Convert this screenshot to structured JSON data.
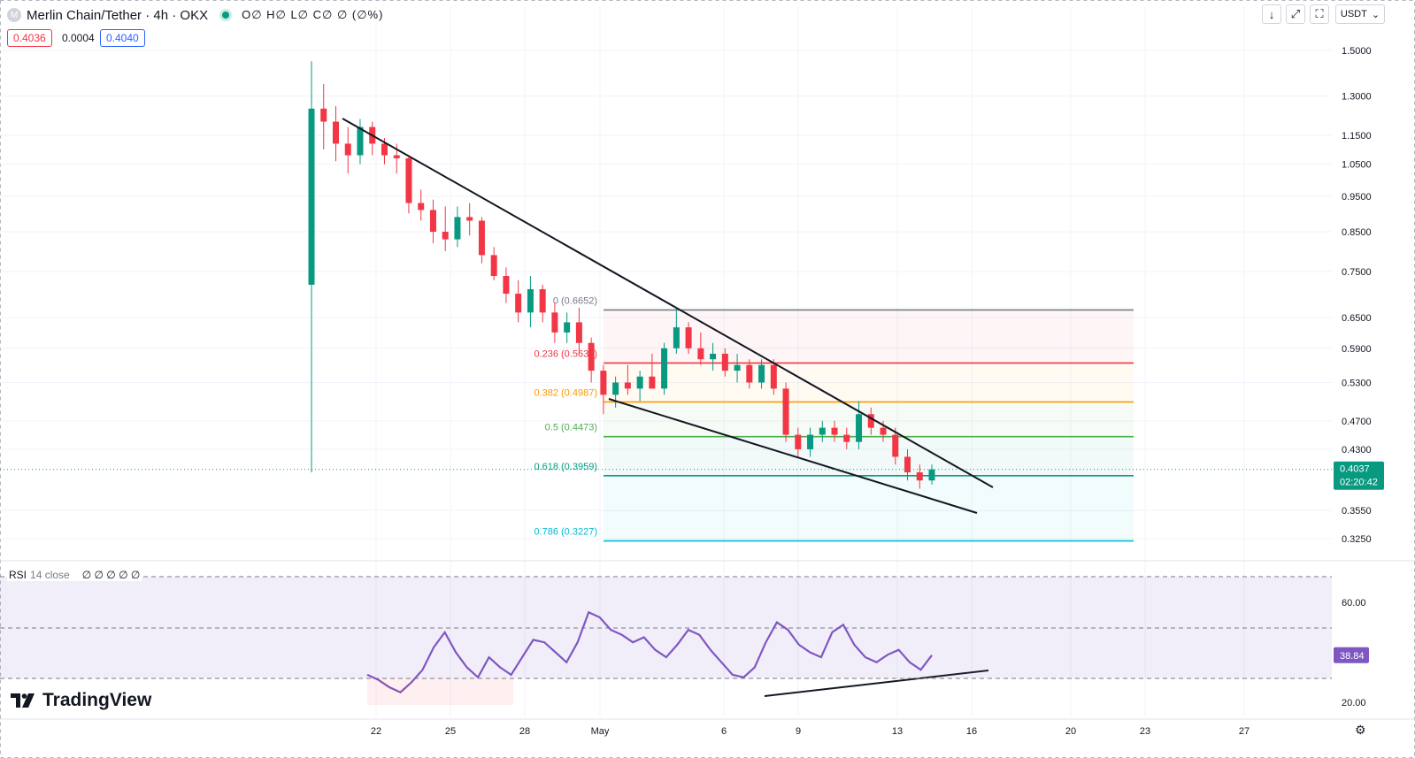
{
  "header": {
    "symbol_icon": "M",
    "title": "Merlin Chain/Tether · 4h · OKX",
    "ohlc": "O∅ H∅ L∅ C∅ ∅ (∅%)",
    "sell_price": "0.4036",
    "spread": "0.0004",
    "buy_price": "0.4040"
  },
  "toolbar": {
    "down_icon": "↓",
    "fullscreen_icon": "⤢",
    "screenshot_icon": "⛶",
    "currency": "USDT",
    "currency_caret": "⌄"
  },
  "colors": {
    "up": "#089981",
    "down": "#f23645",
    "rsi": "#7e57c2",
    "fib0": "#787b86",
    "fib236": "#f23645",
    "fib382": "#ff9800",
    "fib5": "#4caf50",
    "fib618": "#089981",
    "fib786": "#00bcd4"
  },
  "rsi_legend": {
    "label": "RSI",
    "params": "14 close",
    "values": "∅ ∅ ∅ ∅ ∅"
  },
  "fib_levels": [
    {
      "label": "0 (0.6652)",
      "price": 0.6652,
      "color": "#787b86"
    },
    {
      "label": "0.236 (0.5634)",
      "price": 0.5634,
      "color": "#f23645"
    },
    {
      "label": "0.382 (0.4987)",
      "price": 0.4987,
      "color": "#ff9800"
    },
    {
      "label": "0.5 (0.4473)",
      "price": 0.4473,
      "color": "#4caf50"
    },
    {
      "label": "0.618 (0.3959)",
      "price": 0.3959,
      "color": "#089981"
    },
    {
      "label": "0.786 (0.3227)",
      "price": 0.3227,
      "color": "#00bcd4"
    }
  ],
  "price_axis": [
    "1.5000",
    "1.3000",
    "1.1500",
    "1.0500",
    "0.9500",
    "0.8500",
    "0.7500",
    "0.6500",
    "0.5900",
    "0.5300",
    "0.4700",
    "0.4300",
    "0.3550",
    "0.3250"
  ],
  "last_price": {
    "value": "0.4037",
    "countdown": "02:20:42"
  },
  "rsi_axis": [
    "60.00",
    "20.00"
  ],
  "rsi_last": "38.84",
  "time_axis": [
    "22",
    "25",
    "28",
    "May",
    "6",
    "9",
    "13",
    "16",
    "20",
    "23",
    "27"
  ],
  "brand": "TradingView",
  "chart_data": {
    "type": "candlestick",
    "timeframe": "4h",
    "y_scale": "log",
    "candles": [
      {
        "t": "Apr 19",
        "o": 0.72,
        "h": 1.45,
        "l": 0.4,
        "c": 1.25
      },
      {
        "t": "Apr 19",
        "o": 1.25,
        "h": 1.35,
        "l": 1.1,
        "c": 1.2
      },
      {
        "t": "Apr 20",
        "o": 1.2,
        "h": 1.26,
        "l": 1.06,
        "c": 1.12
      },
      {
        "t": "Apr 20",
        "o": 1.12,
        "h": 1.18,
        "l": 1.02,
        "c": 1.08
      },
      {
        "t": "Apr 21",
        "o": 1.08,
        "h": 1.21,
        "l": 1.05,
        "c": 1.18
      },
      {
        "t": "Apr 21",
        "o": 1.18,
        "h": 1.2,
        "l": 1.08,
        "c": 1.12
      },
      {
        "t": "Apr 22",
        "o": 1.12,
        "h": 1.14,
        "l": 1.05,
        "c": 1.08
      },
      {
        "t": "Apr 22",
        "o": 1.08,
        "h": 1.12,
        "l": 1.02,
        "c": 1.07
      },
      {
        "t": "Apr 23",
        "o": 1.07,
        "h": 1.08,
        "l": 0.9,
        "c": 0.93
      },
      {
        "t": "Apr 23",
        "o": 0.93,
        "h": 0.97,
        "l": 0.88,
        "c": 0.91
      },
      {
        "t": "Apr 24",
        "o": 0.91,
        "h": 0.94,
        "l": 0.82,
        "c": 0.85
      },
      {
        "t": "Apr 24",
        "o": 0.85,
        "h": 0.92,
        "l": 0.8,
        "c": 0.83
      },
      {
        "t": "Apr 25",
        "o": 0.83,
        "h": 0.92,
        "l": 0.81,
        "c": 0.89
      },
      {
        "t": "Apr 25",
        "o": 0.89,
        "h": 0.93,
        "l": 0.84,
        "c": 0.88
      },
      {
        "t": "Apr 26",
        "o": 0.88,
        "h": 0.89,
        "l": 0.77,
        "c": 0.79
      },
      {
        "t": "Apr 26",
        "o": 0.79,
        "h": 0.81,
        "l": 0.73,
        "c": 0.74
      },
      {
        "t": "Apr 27",
        "o": 0.74,
        "h": 0.76,
        "l": 0.68,
        "c": 0.7
      },
      {
        "t": "Apr 27",
        "o": 0.7,
        "h": 0.73,
        "l": 0.64,
        "c": 0.66
      },
      {
        "t": "Apr 28",
        "o": 0.66,
        "h": 0.74,
        "l": 0.63,
        "c": 0.71
      },
      {
        "t": "Apr 28",
        "o": 0.71,
        "h": 0.72,
        "l": 0.64,
        "c": 0.66
      },
      {
        "t": "Apr 29",
        "o": 0.66,
        "h": 0.68,
        "l": 0.6,
        "c": 0.62
      },
      {
        "t": "Apr 29",
        "o": 0.62,
        "h": 0.66,
        "l": 0.6,
        "c": 0.64
      },
      {
        "t": "Apr 30",
        "o": 0.64,
        "h": 0.67,
        "l": 0.58,
        "c": 0.6
      },
      {
        "t": "Apr 30",
        "o": 0.6,
        "h": 0.61,
        "l": 0.53,
        "c": 0.55
      },
      {
        "t": "May 1",
        "o": 0.55,
        "h": 0.56,
        "l": 0.48,
        "c": 0.51
      },
      {
        "t": "May 1",
        "o": 0.51,
        "h": 0.54,
        "l": 0.49,
        "c": 0.53
      },
      {
        "t": "May 2",
        "o": 0.53,
        "h": 0.56,
        "l": 0.51,
        "c": 0.52
      },
      {
        "t": "May 2",
        "o": 0.52,
        "h": 0.55,
        "l": 0.5,
        "c": 0.54
      },
      {
        "t": "May 3",
        "o": 0.54,
        "h": 0.58,
        "l": 0.52,
        "c": 0.52
      },
      {
        "t": "May 3",
        "o": 0.52,
        "h": 0.6,
        "l": 0.51,
        "c": 0.59
      },
      {
        "t": "May 4",
        "o": 0.59,
        "h": 0.67,
        "l": 0.58,
        "c": 0.63
      },
      {
        "t": "May 4",
        "o": 0.63,
        "h": 0.64,
        "l": 0.58,
        "c": 0.59
      },
      {
        "t": "May 5",
        "o": 0.59,
        "h": 0.62,
        "l": 0.56,
        "c": 0.57
      },
      {
        "t": "May 5",
        "o": 0.57,
        "h": 0.6,
        "l": 0.55,
        "c": 0.58
      },
      {
        "t": "May 6",
        "o": 0.58,
        "h": 0.59,
        "l": 0.54,
        "c": 0.55
      },
      {
        "t": "May 6",
        "o": 0.55,
        "h": 0.58,
        "l": 0.53,
        "c": 0.56
      },
      {
        "t": "May 7",
        "o": 0.56,
        "h": 0.57,
        "l": 0.52,
        "c": 0.53
      },
      {
        "t": "May 7",
        "o": 0.53,
        "h": 0.57,
        "l": 0.52,
        "c": 0.56
      },
      {
        "t": "May 8",
        "o": 0.56,
        "h": 0.57,
        "l": 0.51,
        "c": 0.52
      },
      {
        "t": "May 8",
        "o": 0.52,
        "h": 0.53,
        "l": 0.44,
        "c": 0.45
      },
      {
        "t": "May 9",
        "o": 0.45,
        "h": 0.46,
        "l": 0.42,
        "c": 0.43
      },
      {
        "t": "May 9",
        "o": 0.43,
        "h": 0.46,
        "l": 0.42,
        "c": 0.45
      },
      {
        "t": "May 10",
        "o": 0.45,
        "h": 0.47,
        "l": 0.44,
        "c": 0.46
      },
      {
        "t": "May 10",
        "o": 0.46,
        "h": 0.47,
        "l": 0.44,
        "c": 0.45
      },
      {
        "t": "May 11",
        "o": 0.45,
        "h": 0.46,
        "l": 0.43,
        "c": 0.44
      },
      {
        "t": "May 11",
        "o": 0.44,
        "h": 0.5,
        "l": 0.43,
        "c": 0.48
      },
      {
        "t": "May 12",
        "o": 0.48,
        "h": 0.49,
        "l": 0.45,
        "c": 0.46
      },
      {
        "t": "May 12",
        "o": 0.46,
        "h": 0.47,
        "l": 0.44,
        "c": 0.45
      },
      {
        "t": "May 13",
        "o": 0.45,
        "h": 0.46,
        "l": 0.41,
        "c": 0.42
      },
      {
        "t": "May 13",
        "o": 0.42,
        "h": 0.43,
        "l": 0.39,
        "c": 0.4
      },
      {
        "t": "May 14",
        "o": 0.4,
        "h": 0.41,
        "l": 0.38,
        "c": 0.39
      },
      {
        "t": "May 14",
        "o": 0.39,
        "h": 0.41,
        "l": 0.385,
        "c": 0.4037
      }
    ],
    "rsi_series": [
      31,
      29,
      26,
      24,
      28,
      33,
      42,
      48,
      40,
      34,
      30,
      38,
      34,
      31,
      38,
      45,
      44,
      40,
      36,
      44,
      56,
      54,
      49,
      47,
      44,
      46,
      41,
      38,
      43,
      49,
      47,
      41,
      36,
      31,
      30,
      34,
      44,
      52,
      49,
      43,
      40,
      38,
      48,
      51,
      43,
      38,
      36,
      39,
      41,
      36,
      33,
      38.84
    ],
    "price_ylim": [
      0.3,
      1.6
    ],
    "rsi_ylim": [
      15,
      75
    ],
    "last_price": 0.4037,
    "rsi_last": 38.84
  }
}
